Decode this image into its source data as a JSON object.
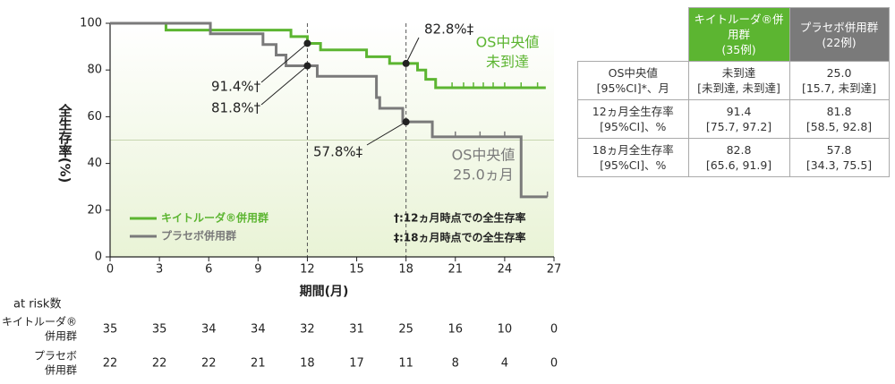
{
  "chart_data": {
    "type": "line",
    "step": true,
    "ylabel": "全生存率(%)",
    "xlabel": "期間(月)",
    "xlim": [
      0,
      27
    ],
    "xticks": [
      0,
      3,
      6,
      9,
      12,
      15,
      18,
      21,
      24,
      27
    ],
    "ylim": [
      0,
      100
    ],
    "yticks": [
      0,
      20,
      40,
      60,
      80,
      100
    ],
    "reference_x": [
      12,
      18
    ],
    "reference_y": 50,
    "series": [
      {
        "name": "キイトルーダ®併用群",
        "color": "#5cb531",
        "x": [
          0,
          3.4,
          11,
          12,
          12.8,
          15.6,
          17,
          18.7,
          19.2,
          19.8,
          26.5
        ],
        "values": [
          100,
          97.1,
          94.3,
          91.4,
          88.6,
          85.7,
          82.8,
          80.0,
          76.0,
          72.4,
          72.4
        ],
        "censored": [
          20.8,
          21.5,
          22.1,
          22.7,
          23.3,
          24,
          25,
          26
        ]
      },
      {
        "name": "プラセボ併用群",
        "color": "#7a7a7a",
        "x": [
          0,
          6.1,
          9.3,
          10.1,
          10.7,
          12.6,
          16.2,
          16.4,
          17.8,
          19.6,
          25,
          26.6
        ],
        "values": [
          100,
          95.5,
          90.9,
          86.4,
          81.8,
          77.3,
          68.2,
          63.6,
          57.8,
          51.4,
          25.7,
          25.7
        ],
        "censored": [
          21,
          22.5,
          24,
          26.6
        ]
      }
    ],
    "annotations": [
      {
        "text": "91.4%†",
        "x": 12,
        "y": 91.4
      },
      {
        "text": "81.8%†",
        "x": 12,
        "y": 81.8
      },
      {
        "text": "82.8%‡",
        "x": 18,
        "y": 82.8
      },
      {
        "text": "57.8%‡",
        "x": 18,
        "y": 57.8
      }
    ],
    "median_labels": [
      [
        "OS中央値",
        "未到達"
      ],
      [
        "OS中央値",
        "25.0ヵ月"
      ]
    ],
    "footnotes": [
      "†:12ヵ月時点での全生存率",
      "‡:18ヵ月時点での全生存率"
    ],
    "at_risk": {
      "title": "at risk数",
      "x": [
        0,
        3,
        6,
        9,
        12,
        15,
        18,
        21,
        24,
        27
      ],
      "rows": [
        {
          "label": [
            "キイトルーダ®",
            "併用群"
          ],
          "values": [
            35,
            35,
            34,
            34,
            32,
            31,
            25,
            16,
            10,
            0
          ]
        },
        {
          "label": [
            "プラセボ",
            "併用群"
          ],
          "values": [
            22,
            22,
            22,
            21,
            18,
            17,
            11,
            8,
            4,
            0
          ]
        }
      ]
    }
  },
  "table": {
    "header": [
      [
        "キイトルーダ®併用群",
        "(35例)"
      ],
      [
        "プラセボ併用群",
        "(22例)"
      ]
    ],
    "rows": [
      [
        [
          "OS中央値",
          "[95%CI]*、月"
        ],
        [
          "未到達",
          "[未到達, 未到達]"
        ],
        [
          "25.0",
          "[15.7, 未到達]"
        ]
      ],
      [
        [
          "12ヵ月全生存率",
          "[95%CI]、%"
        ],
        [
          "91.4",
          "[75.7, 97.2]"
        ],
        [
          "81.8",
          "[58.5, 92.8]"
        ]
      ],
      [
        [
          "18ヵ月全生存率",
          "[95%CI]、%"
        ],
        [
          "82.8",
          "[65.6, 91.9]"
        ],
        [
          "57.8",
          "[34.3, 75.5]"
        ]
      ]
    ]
  }
}
